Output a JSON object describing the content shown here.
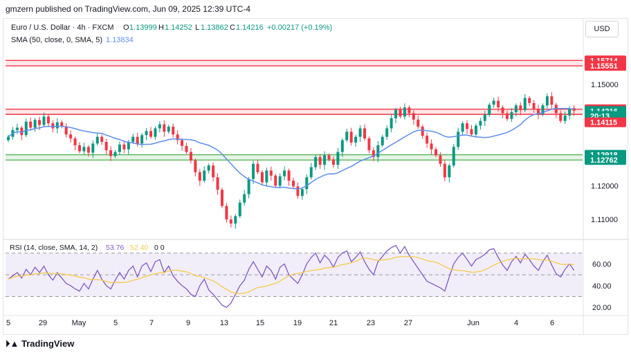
{
  "header": {
    "published": "gmzern published on TradingView.com, Jun 09, 2025 12:39 UTC-4"
  },
  "legend": {
    "symbol": "Euro / U.S. Dollar · 4h · FXCM",
    "o_label": "O",
    "o_value": "1.13999",
    "h_label": "H",
    "h_value": "1.14252",
    "l_label": "L",
    "l_value": "1.13862",
    "c_label": "C",
    "c_value": "1.14216",
    "change": "+0.00217 (+0.19%)",
    "sma_text": "SMA (50, close, 0, SMA, 5)",
    "sma_value": "1.13834"
  },
  "currency_button": "USD",
  "price_axis": {
    "ticks": [
      "1.15000",
      "1.12000",
      "1.11000"
    ],
    "labels": [
      {
        "text": "1.15714",
        "value": 1.15714,
        "color": "#f23645"
      },
      {
        "text": "1.15551",
        "value": 1.15551,
        "color": "#f23645"
      },
      {
        "text": "1.14267",
        "value": 1.14267,
        "color": "#f23645"
      },
      {
        "text": "1.14216",
        "value": 1.14216,
        "color": "#089981"
      },
      {
        "text": "20:13",
        "value": 1.1407,
        "color": "#089981"
      },
      {
        "text": "1.14115",
        "value": 1.1388,
        "color": "#f23645"
      },
      {
        "text": "1.12918",
        "value": 1.12918,
        "color": "#089981"
      },
      {
        "text": "1.12762",
        "value": 1.12762,
        "color": "#089981"
      }
    ]
  },
  "rsi": {
    "legend_text": "RSI (14, close, SMA, 14, 2)",
    "rsi_value": "53.76",
    "ma_value": "52.40",
    "extra": "0 0",
    "ticks": [
      "60.00",
      "40.00",
      "20.00"
    ]
  },
  "time_axis": [
    "5",
    "29",
    "May",
    "5",
    "7",
    "9",
    "13",
    "15",
    "19",
    "21",
    "23",
    "27",
    "Jun",
    "4",
    "6"
  ],
  "footer": {
    "brand": "TradingView"
  },
  "colors": {
    "up": "#089981",
    "down": "#f23645",
    "sma": "#5b8def",
    "resistance": "#f23645",
    "support": "#4caf50",
    "rsi_line": "#7e57c2",
    "rsi_ma": "#f7c948",
    "rsi_band": "#ede7f6"
  },
  "chart_data": [
    {
      "type": "candlestick",
      "title": "Euro / U.S. Dollar · 4h · FXCM",
      "ylim": [
        1.1045,
        1.1615
      ],
      "resistance_zones": [
        [
          1.15551,
          1.15714
        ],
        [
          1.14115,
          1.14267
        ]
      ],
      "support_zones": [
        [
          1.12762,
          1.12918
        ]
      ],
      "sma_value": 1.13834,
      "close_series": [
        1.1345,
        1.1365,
        1.1372,
        1.135,
        1.139,
        1.1372,
        1.1395,
        1.138,
        1.1405,
        1.1385,
        1.137,
        1.1388,
        1.1376,
        1.1352,
        1.134,
        1.132,
        1.1302,
        1.1315,
        1.1298,
        1.1325,
        1.1345,
        1.133,
        1.1305,
        1.1288,
        1.13,
        1.1322,
        1.1308,
        1.133,
        1.1345,
        1.1325,
        1.135,
        1.1362,
        1.1345,
        1.137,
        1.1382,
        1.136,
        1.1375,
        1.1352,
        1.1335,
        1.1318,
        1.13,
        1.1275,
        1.124,
        1.1215,
        1.1245,
        1.126,
        1.1225,
        1.1188,
        1.114,
        1.11,
        1.1088,
        1.111,
        1.115,
        1.1175,
        1.122,
        1.1265,
        1.124,
        1.121,
        1.1245,
        1.123,
        1.12,
        1.1228,
        1.1245,
        1.1215,
        1.1198,
        1.117,
        1.119,
        1.1225,
        1.1255,
        1.1285,
        1.1262,
        1.129,
        1.1278,
        1.1262,
        1.13,
        1.1335,
        1.136,
        1.1328,
        1.1345,
        1.137,
        1.134,
        1.1305,
        1.1285,
        1.132,
        1.1345,
        1.137,
        1.14,
        1.1425,
        1.1405,
        1.1432,
        1.1415,
        1.1396,
        1.1375,
        1.1348,
        1.1325,
        1.1308,
        1.129,
        1.1265,
        1.1225,
        1.126,
        1.1315,
        1.136,
        1.1385,
        1.1368,
        1.1352,
        1.1378,
        1.1392,
        1.141,
        1.144,
        1.1452,
        1.1432,
        1.1415,
        1.1398,
        1.1418,
        1.1438,
        1.1424,
        1.146,
        1.1445,
        1.1428,
        1.1412,
        1.1438,
        1.1465,
        1.144,
        1.1415,
        1.1392,
        1.1408,
        1.143,
        1.1422
      ]
    },
    {
      "type": "line",
      "title": "RSI (14, close, SMA, 14, 2)",
      "ylim": [
        15,
        80
      ],
      "levels": [
        70,
        50,
        30
      ],
      "series_name": "RSI",
      "values": [
        46,
        49,
        52,
        47,
        55,
        50,
        57,
        52,
        58,
        50,
        45,
        52,
        47,
        42,
        40,
        37,
        35,
        42,
        37,
        46,
        54,
        46,
        40,
        37,
        45,
        52,
        46,
        54,
        58,
        48,
        58,
        61,
        53,
        62,
        64,
        52,
        58,
        49,
        44,
        40,
        37,
        32,
        30,
        40,
        46,
        36,
        32,
        27,
        22,
        20,
        24,
        32,
        40,
        45,
        55,
        62,
        55,
        48,
        58,
        54,
        46,
        57,
        60,
        50,
        46,
        42,
        50,
        60,
        66,
        70,
        61,
        68,
        64,
        57,
        66,
        70,
        72,
        62,
        66,
        71,
        62,
        55,
        50,
        62,
        67,
        72,
        75,
        77,
        70,
        76,
        68,
        62,
        56,
        50,
        44,
        42,
        40,
        38,
        35,
        48,
        60,
        66,
        70,
        64,
        58,
        64,
        66,
        69,
        73,
        74,
        66,
        59,
        54,
        62,
        67,
        61,
        69,
        64,
        58,
        54,
        62,
        68,
        59,
        51,
        48,
        55,
        60,
        54
      ]
    }
  ]
}
